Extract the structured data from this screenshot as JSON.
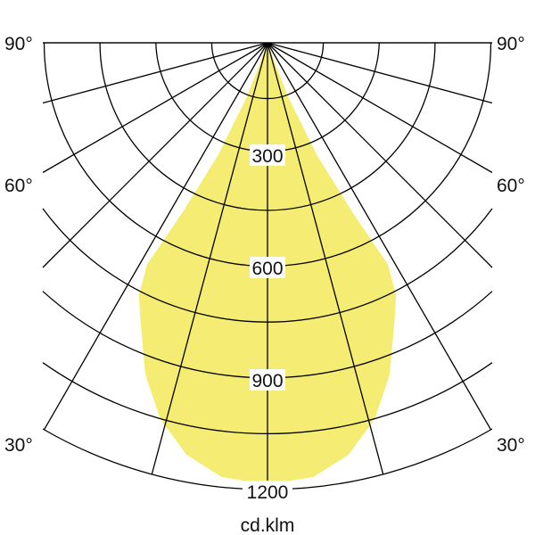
{
  "chart_data": {
    "type": "polar",
    "unit_label": "cd.klm",
    "radial_ticks": [
      300,
      600,
      900,
      1200
    ],
    "radial_grid_step": 150,
    "radial_max": 1200,
    "angle_grid_step": 15,
    "angle_labels": {
      "left": [
        "90°",
        "60°",
        "30°"
      ],
      "right": [
        "90°",
        "60°",
        "30°"
      ]
    },
    "angle_label_values": [
      90,
      60,
      30
    ],
    "fill_color": "#f5ec73",
    "grid_color": "#000000",
    "outline": [
      [
        0,
        0
      ],
      [
        -20,
        65
      ],
      [
        -21,
        159
      ],
      [
        -23.7,
        327
      ],
      [
        -26.5,
        500
      ],
      [
        -28.5,
        678
      ],
      [
        -27,
        760
      ],
      [
        -24.8,
        815
      ],
      [
        -20.2,
        950
      ],
      [
        -15.9,
        1051
      ],
      [
        -11.1,
        1128
      ],
      [
        -6,
        1173
      ],
      [
        0,
        1186
      ],
      [
        6,
        1173
      ],
      [
        11.1,
        1128
      ],
      [
        15.9,
        1051
      ],
      [
        20.2,
        950
      ],
      [
        24.8,
        815
      ],
      [
        27,
        760
      ],
      [
        28.5,
        678
      ],
      [
        26.5,
        500
      ],
      [
        23.7,
        327
      ],
      [
        21,
        159
      ],
      [
        20,
        65
      ],
      [
        0,
        0
      ]
    ]
  }
}
